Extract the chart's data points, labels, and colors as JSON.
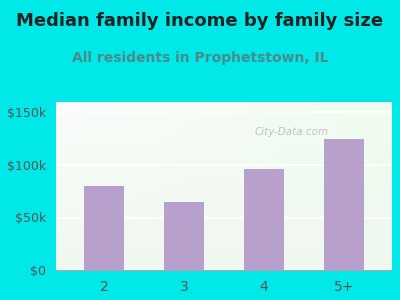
{
  "title": "Median family income by family size",
  "subtitle": "All residents in Prophetstown, IL",
  "categories": [
    "2",
    "3",
    "4",
    "5+"
  ],
  "values": [
    80000,
    65000,
    96000,
    125000
  ],
  "bar_color": "#b8a0cc",
  "title_fontsize": 13,
  "subtitle_fontsize": 10,
  "subtitle_color": "#4a8a8a",
  "title_color": "#222222",
  "background_outer": "#00e8e8",
  "ylim": [
    0,
    160000
  ],
  "yticks": [
    0,
    50000,
    100000,
    150000
  ],
  "ytick_labels": [
    "$0",
    "$50k",
    "$100k",
    "$150k"
  ],
  "tick_color": "#555555",
  "watermark": "City-Data.com"
}
